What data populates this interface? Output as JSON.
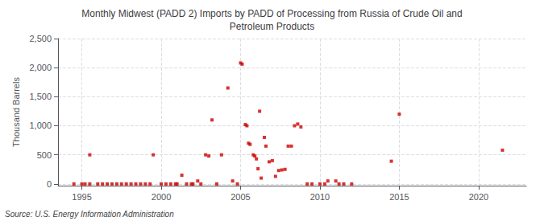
{
  "chart_data": {
    "type": "scatter",
    "title": "Monthly Midwest (PADD 2) Imports by PADD of Processing from Russia of Crude Oil and\nPetroleum Products",
    "ylabel": "Thousand Barrels",
    "annotations": [
      "Source: U.S. Energy Information Administration"
    ],
    "xlim": [
      1993.5,
      2023
    ],
    "ylim": [
      -30,
      2500
    ],
    "xticks": [
      1995,
      2000,
      2005,
      2010,
      2015,
      2020
    ],
    "yticks": [
      0,
      500,
      {
        "value": 1000,
        "label": "1,000"
      },
      {
        "value": 1500,
        "label": "1,500"
      },
      {
        "value": 2000,
        "label": "2,000"
      },
      {
        "value": 2500,
        "label": "2,500"
      }
    ],
    "grid": true,
    "marker": "square",
    "series": [
      {
        "color": "#cc0000",
        "x": [
          1994.5,
          1995.0,
          1995.2,
          1995.5,
          1996.0,
          1996.3,
          1996.6,
          1996.9,
          1997.2,
          1997.5,
          1997.8,
          1998.1,
          1998.4,
          1998.7,
          1999.0,
          1999.3,
          2000.0,
          2000.3,
          2000.6,
          2000.9,
          2001.0,
          2001.6,
          2001.9,
          2002.0,
          2002.5,
          2003.5,
          2009.2,
          2010.0,
          2010.3,
          2011.5,
          2012.0
        ],
        "values": [
          0,
          0,
          0,
          0,
          0,
          0,
          0,
          0,
          0,
          0,
          0,
          0,
          0,
          0,
          0,
          0,
          0,
          0,
          0,
          0,
          0,
          0,
          0,
          0,
          0,
          0,
          0,
          0,
          0,
          0,
          0
        ]
      },
      {
        "color": "#cc0000",
        "x": [
          1995.5,
          1999.5,
          2001.3,
          2002.3,
          2002.8,
          2003.0,
          2003.2,
          2003.8,
          2004.2,
          2004.5,
          2004.8,
          2005.0,
          2005.1,
          2005.3,
          2005.4,
          2005.5,
          2005.6,
          2005.8,
          2005.9,
          2006.0,
          2006.1,
          2006.2,
          2006.3,
          2006.5,
          2006.6,
          2006.8,
          2007.0,
          2007.2,
          2007.4,
          2007.6,
          2007.8,
          2008.0,
          2008.2,
          2008.4,
          2008.6,
          2008.8,
          2009.5,
          2010.5,
          2011.0,
          2011.2,
          2014.5,
          2015.0,
          2021.5
        ],
        "values": [
          500,
          500,
          150,
          50,
          500,
          480,
          1100,
          500,
          1650,
          50,
          0,
          2080,
          2060,
          1020,
          1000,
          700,
          680,
          500,
          480,
          430,
          260,
          1250,
          100,
          800,
          650,
          380,
          400,
          130,
          230,
          240,
          250,
          650,
          650,
          1000,
          1030,
          980,
          0,
          50,
          50,
          0,
          390,
          1200,
          580
        ]
      }
    ]
  }
}
